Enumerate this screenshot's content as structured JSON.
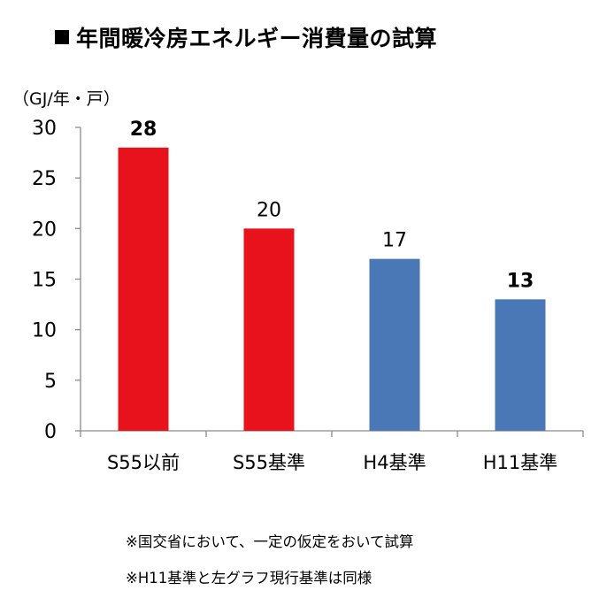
{
  "title": "年間暖冷房エネルギー消費量の試算",
  "chart_data": {
    "type": "bar",
    "title": "年間暖冷房エネルギー消費量の試算",
    "ylabel": "（GJ/年・戸）",
    "xlabel": "",
    "categories": [
      "S55以前",
      "S55基準",
      "H4基準",
      "H11基準"
    ],
    "values": [
      28,
      20,
      17,
      13
    ],
    "value_labels": [
      "28",
      "20",
      "17",
      "13"
    ],
    "bold_labels": [
      true,
      false,
      false,
      true
    ],
    "bar_colors": [
      "#e8121c",
      "#e8121c",
      "#4a78b6",
      "#4a78b6"
    ],
    "ylim": [
      0,
      30
    ],
    "yticks": [
      0,
      5,
      10,
      15,
      20,
      25,
      30
    ],
    "grid": false,
    "legend": "none"
  },
  "notes": {
    "note1": "※国交省において、一定の仮定をおいて試算",
    "note2": "※H11基準と左グラフ現行基準は同様"
  }
}
